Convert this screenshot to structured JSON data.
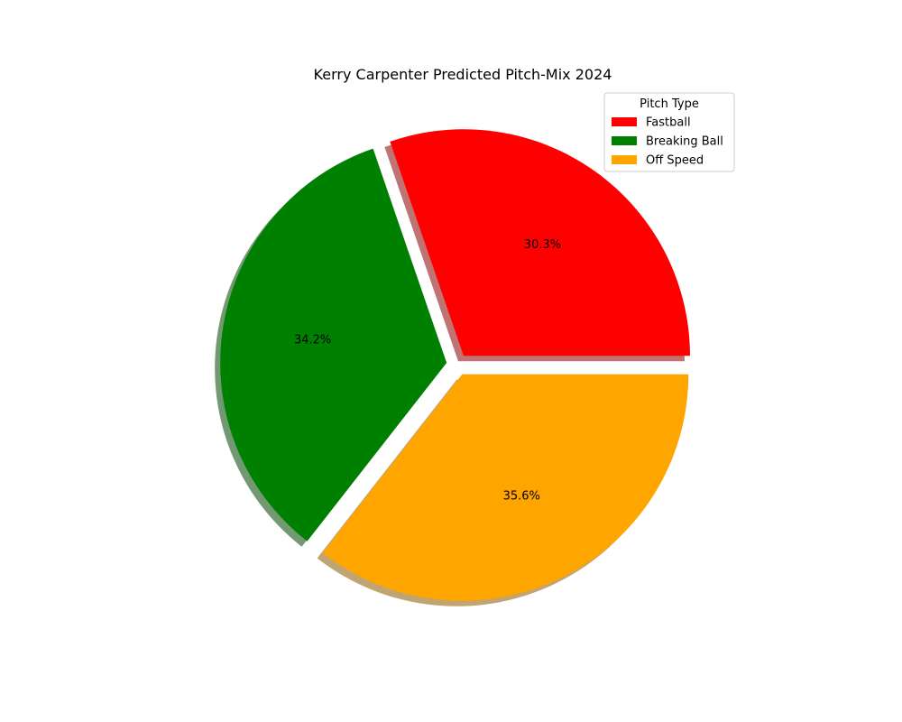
{
  "chart_data": {
    "type": "pie",
    "title": "Kerry Carpenter Predicted Pitch-Mix 2024",
    "legend_title": "Pitch Type",
    "legend_position": "top-right",
    "start_angle_deg": 0,
    "direction": "counterclockwise",
    "exploded": true,
    "shadow": true,
    "slices": [
      {
        "label": "Fastball",
        "value": 30.3,
        "pct_label": "30.3%",
        "color": "#ff0000"
      },
      {
        "label": "Breaking Ball",
        "value": 34.2,
        "pct_label": "34.2%",
        "color": "#008000"
      },
      {
        "label": "Off Speed",
        "value": 35.6,
        "pct_label": "35.6%",
        "color": "#ffa500"
      }
    ]
  }
}
